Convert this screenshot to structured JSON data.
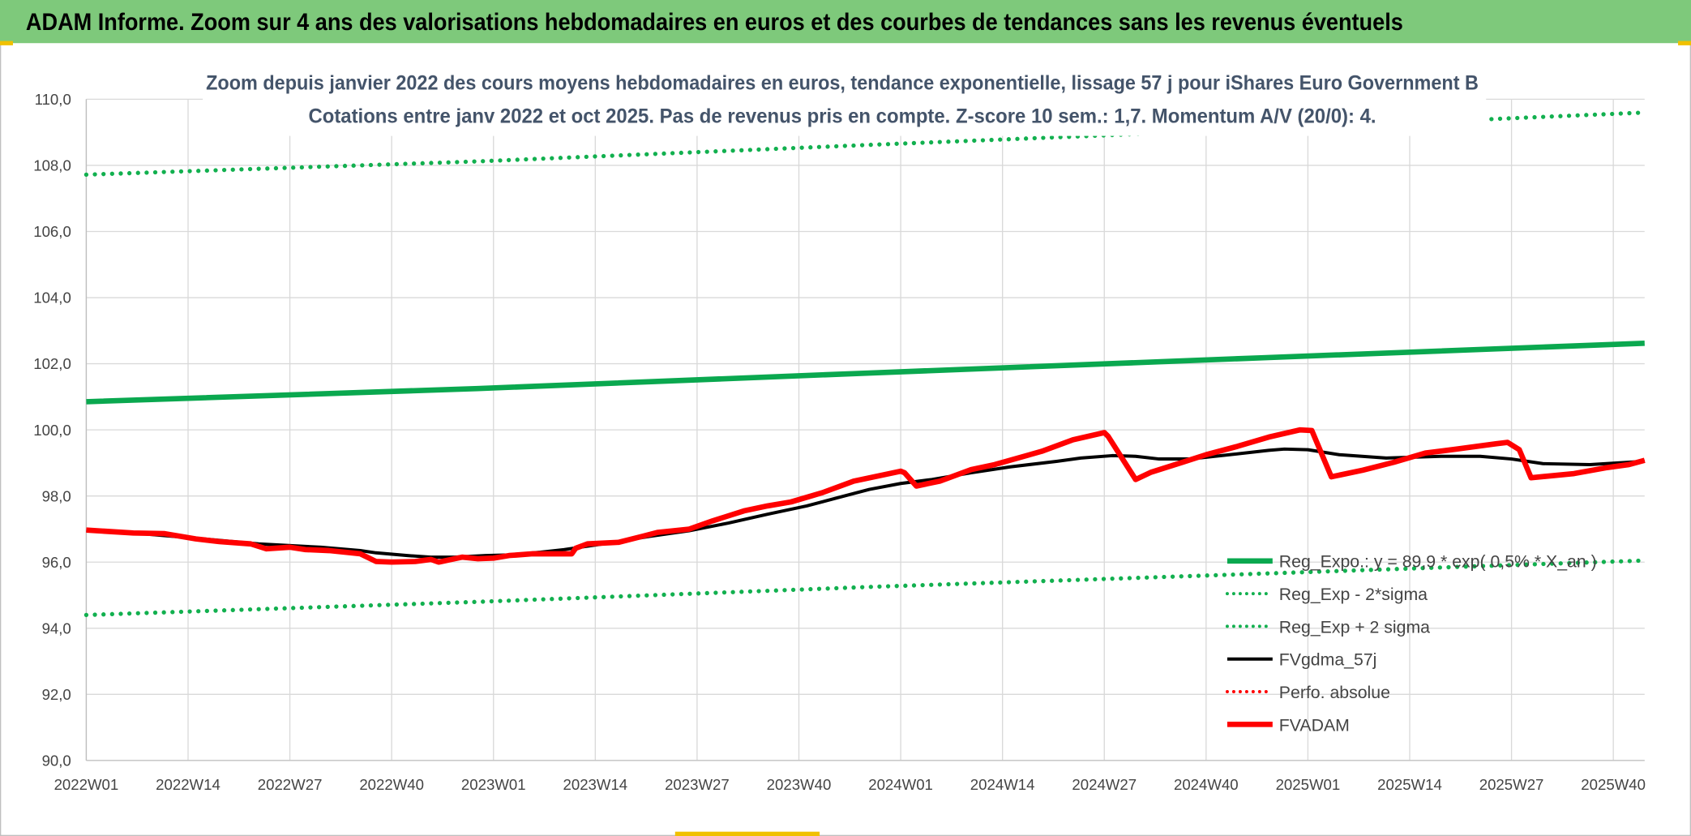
{
  "header": {
    "title": "ADAM Informe. Zoom sur 4 ans des valorisations hebdomadaires en euros et des courbes de tendances sans les revenus éventuels"
  },
  "colors": {
    "header_bg": "#7ec97b",
    "reg_green": "#0aa84f",
    "dotted_green": "#12b04f",
    "gdma_black": "#000000",
    "adam_red": "#ff0000",
    "perfo_red": "#ff0000",
    "grid": "#d9d9d9"
  },
  "chart_data": {
    "type": "line",
    "title": "Zoom depuis janvier 2022 des cours moyens hebdomadaires en euros, tendance exponentielle, lissage 57 j pour iShares Euro Government B",
    "subtitle": "Cotations entre janv 2022 et oct 2025. Pas de revenus pris en compte. Z-score 10 sem.: 1,7. Momentum A/V (20/0): 4.",
    "xlabel": "",
    "ylabel": "",
    "x_unit": "weeks since 2022W01",
    "x_range": [
      0,
      199
    ],
    "ylim": [
      90,
      110
    ],
    "y_ticks": [
      "90,0",
      "92,0",
      "94,0",
      "96,0",
      "98,0",
      "100,0",
      "102,0",
      "104,0",
      "106,0",
      "108,0",
      "110,0"
    ],
    "y_tick_values": [
      90,
      92,
      94,
      96,
      98,
      100,
      102,
      104,
      106,
      108,
      110
    ],
    "x_ticks": [
      "2022W01",
      "2022W14",
      "2022W27",
      "2022W40",
      "2023W01",
      "2023W14",
      "2023W27",
      "2023W40",
      "2024W01",
      "2024W14",
      "2024W27",
      "2024W40",
      "2025W01",
      "2025W14",
      "2025W27",
      "2025W40"
    ],
    "x_tick_weeks": [
      0,
      13,
      26,
      39,
      52,
      65,
      78,
      91,
      104,
      117,
      130,
      143,
      156,
      169,
      182,
      195
    ],
    "grid": true,
    "legend_position": "bottom-right",
    "series": [
      {
        "name": "Reg_Expo.: y = 89,9 * exp( 0,5% * X_an )",
        "style": "solid-thick",
        "color": "#0aa84f",
        "points": [
          [
            0,
            100.85
          ],
          [
            50,
            101.25
          ],
          [
            100,
            101.72
          ],
          [
            150,
            102.18
          ],
          [
            199,
            102.62
          ]
        ]
      },
      {
        "name": "Reg_Exp - 2*sigma",
        "style": "dotted",
        "color": "#12b04f",
        "points": [
          [
            0,
            94.4
          ],
          [
            50,
            94.8
          ],
          [
            100,
            95.25
          ],
          [
            150,
            95.65
          ],
          [
            199,
            96.05
          ]
        ]
      },
      {
        "name": "Reg_Exp + 2 sigma",
        "style": "dotted",
        "color": "#12b04f",
        "points": [
          [
            0,
            107.72
          ],
          [
            50,
            108.12
          ],
          [
            100,
            108.62
          ],
          [
            150,
            109.1
          ],
          [
            199,
            109.6
          ]
        ]
      },
      {
        "name": "FVgdma_57j",
        "style": "solid",
        "color": "#000000",
        "points": [
          [
            0,
            96.97
          ],
          [
            6,
            96.88
          ],
          [
            14,
            96.72
          ],
          [
            22,
            96.55
          ],
          [
            30,
            96.45
          ],
          [
            35,
            96.35
          ],
          [
            37,
            96.28
          ],
          [
            41,
            96.2
          ],
          [
            44,
            96.15
          ],
          [
            47,
            96.15
          ],
          [
            51,
            96.2
          ],
          [
            54,
            96.22
          ],
          [
            58,
            96.3
          ],
          [
            61,
            96.38
          ],
          [
            66,
            96.55
          ],
          [
            72,
            96.78
          ],
          [
            77,
            96.95
          ],
          [
            82,
            97.18
          ],
          [
            87,
            97.45
          ],
          [
            92,
            97.7
          ],
          [
            96,
            97.95
          ],
          [
            100,
            98.2
          ],
          [
            104,
            98.38
          ],
          [
            108,
            98.5
          ],
          [
            113,
            98.7
          ],
          [
            118,
            98.88
          ],
          [
            124,
            99.05
          ],
          [
            127,
            99.15
          ],
          [
            131,
            99.22
          ],
          [
            134,
            99.2
          ],
          [
            137,
            99.12
          ],
          [
            141,
            99.12
          ],
          [
            146,
            99.25
          ],
          [
            151,
            99.38
          ],
          [
            153,
            99.42
          ],
          [
            156,
            99.4
          ],
          [
            160,
            99.25
          ],
          [
            166,
            99.15
          ],
          [
            173,
            99.2
          ],
          [
            178,
            99.2
          ],
          [
            182,
            99.12
          ],
          [
            186,
            98.98
          ],
          [
            192,
            98.95
          ],
          [
            199,
            99.05
          ]
        ]
      },
      {
        "name": "Perfo. absolue",
        "style": "dotted",
        "color": "#ff0000",
        "points": []
      },
      {
        "name": "FVADAM",
        "style": "solid-thick",
        "color": "#ff0000",
        "points": [
          [
            0,
            96.97
          ],
          [
            6,
            96.88
          ],
          [
            10,
            96.86
          ],
          [
            14,
            96.7
          ],
          [
            17,
            96.62
          ],
          [
            21,
            96.55
          ],
          [
            23,
            96.4
          ],
          [
            26,
            96.45
          ],
          [
            28,
            96.38
          ],
          [
            31,
            96.35
          ],
          [
            35,
            96.25
          ],
          [
            37,
            96.02
          ],
          [
            39,
            96.0
          ],
          [
            42,
            96.02
          ],
          [
            44,
            96.08
          ],
          [
            45,
            96.0
          ],
          [
            47,
            96.1
          ],
          [
            48,
            96.15
          ],
          [
            50,
            96.1
          ],
          [
            52,
            96.12
          ],
          [
            54,
            96.2
          ],
          [
            57,
            96.25
          ],
          [
            62,
            96.25
          ],
          [
            62.5,
            96.42
          ],
          [
            64,
            96.55
          ],
          [
            68,
            96.6
          ],
          [
            71,
            96.78
          ],
          [
            73,
            96.9
          ],
          [
            77,
            97.0
          ],
          [
            80,
            97.25
          ],
          [
            84,
            97.55
          ],
          [
            87,
            97.7
          ],
          [
            90,
            97.82
          ],
          [
            94,
            98.1
          ],
          [
            98,
            98.45
          ],
          [
            101,
            98.6
          ],
          [
            104,
            98.75
          ],
          [
            104.5,
            98.7
          ],
          [
            106,
            98.3
          ],
          [
            109,
            98.45
          ],
          [
            113,
            98.8
          ],
          [
            116,
            98.95
          ],
          [
            122,
            99.35
          ],
          [
            126,
            99.7
          ],
          [
            130,
            99.92
          ],
          [
            130.5,
            99.8
          ],
          [
            134,
            98.5
          ],
          [
            136,
            98.72
          ],
          [
            140,
            99.02
          ],
          [
            143,
            99.25
          ],
          [
            147,
            99.5
          ],
          [
            151,
            99.78
          ],
          [
            155,
            100.0
          ],
          [
            156.5,
            99.98
          ],
          [
            159,
            98.58
          ],
          [
            163,
            98.78
          ],
          [
            167,
            99.02
          ],
          [
            171,
            99.3
          ],
          [
            175,
            99.42
          ],
          [
            180,
            99.58
          ],
          [
            181.5,
            99.62
          ],
          [
            183,
            99.4
          ],
          [
            184.5,
            98.55
          ],
          [
            190,
            98.68
          ],
          [
            194,
            98.85
          ],
          [
            197,
            98.95
          ],
          [
            199,
            99.08
          ]
        ]
      }
    ],
    "legend": [
      {
        "label": "Reg_Expo.: y = 89,9 * exp( 0,5% * X_an )",
        "style": "solid-thick",
        "color": "#0aa84f"
      },
      {
        "label": "Reg_Exp - 2*sigma",
        "style": "dotted",
        "color": "#12b04f"
      },
      {
        "label": "Reg_Exp + 2 sigma",
        "style": "dotted",
        "color": "#12b04f"
      },
      {
        "label": "FVgdma_57j",
        "style": "solid",
        "color": "#000000"
      },
      {
        "label": "Perfo. absolue",
        "style": "dotted",
        "color": "#ff0000"
      },
      {
        "label": "FVADAM",
        "style": "solid-thick",
        "color": "#ff0000"
      }
    ]
  }
}
